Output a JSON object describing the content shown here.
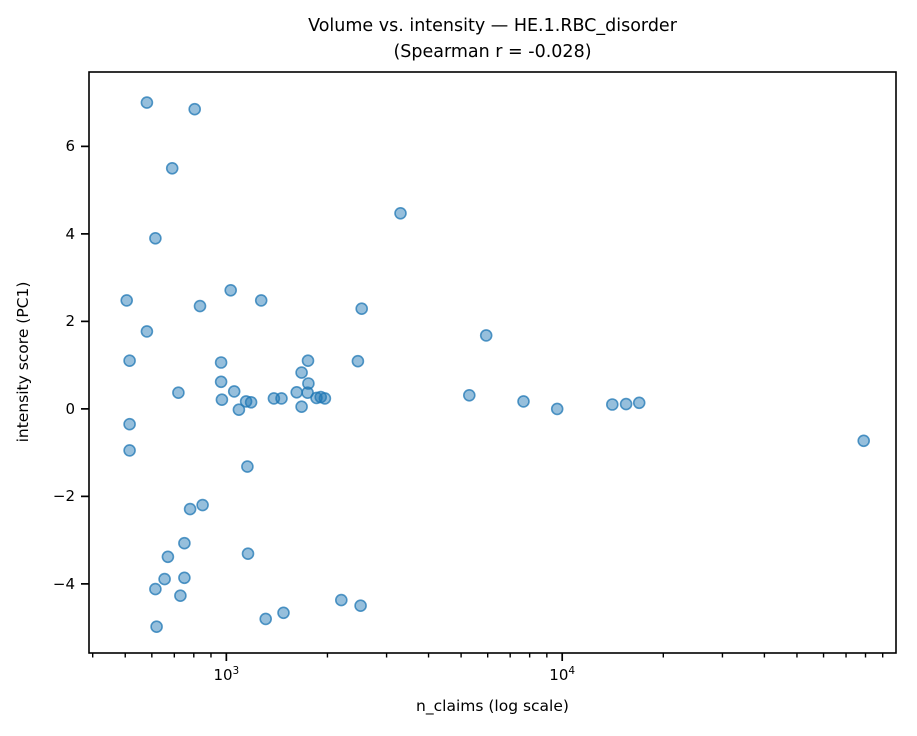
{
  "figure": {
    "title_line1": "Volume vs. intensity — HE.1.RBC_disorder",
    "title_line2": "(Spearman r = -0.028)"
  },
  "chart_data": {
    "type": "scatter",
    "title": "Volume vs. intensity — HE.1.RBC_disorder (Spearman r = -0.028)",
    "xlabel": "n_claims (log scale)",
    "ylabel": "intensity score (PC1)",
    "x_scale": "log",
    "y_scale": "linear",
    "xlim": [
      390,
      98600
    ],
    "ylim": [
      -5.58,
      7.7
    ],
    "grid": false,
    "legend": null,
    "marker": {
      "fill": "#1f77b4",
      "fill_opacity": 0.47,
      "stroke": "#1f77b4",
      "stroke_opacity": 0.75,
      "radius": 5.5,
      "stroke_width": 1.6
    },
    "axis_color": "#000000",
    "x_major_ticks": [
      {
        "value": 1000,
        "label_base": "10",
        "label_exp": "3"
      },
      {
        "value": 10000,
        "label_base": "10",
        "label_exp": "4"
      }
    ],
    "x_minor_ticks": [
      400,
      500,
      600,
      700,
      800,
      900,
      2000,
      3000,
      4000,
      5000,
      6000,
      7000,
      8000,
      9000,
      20000,
      30000,
      40000,
      50000,
      60000,
      70000,
      80000,
      90000
    ],
    "y_ticks": [
      {
        "value": 6,
        "label": "6"
      },
      {
        "value": 4,
        "label": "4"
      },
      {
        "value": 2,
        "label": "2"
      },
      {
        "value": 0,
        "label": "0"
      },
      {
        "value": -2,
        "label": "−2"
      },
      {
        "value": -4,
        "label": "−4"
      }
    ],
    "points": [
      [
        580,
        7.0
      ],
      [
        805,
        6.85
      ],
      [
        690,
        5.5
      ],
      [
        615,
        3.9
      ],
      [
        3300,
        4.47
      ],
      [
        505,
        2.48
      ],
      [
        1030,
        2.71
      ],
      [
        835,
        2.35
      ],
      [
        1270,
        2.48
      ],
      [
        2530,
        2.29
      ],
      [
        580,
        1.77
      ],
      [
        5940,
        1.68
      ],
      [
        515,
        1.1
      ],
      [
        965,
        1.06
      ],
      [
        1750,
        1.1
      ],
      [
        2465,
        1.09
      ],
      [
        1675,
        0.83
      ],
      [
        720,
        0.37
      ],
      [
        965,
        0.62
      ],
      [
        970,
        0.21
      ],
      [
        1055,
        0.4
      ],
      [
        1090,
        -0.02
      ],
      [
        1145,
        0.17
      ],
      [
        1185,
        0.15
      ],
      [
        1385,
        0.24
      ],
      [
        1460,
        0.24
      ],
      [
        1620,
        0.38
      ],
      [
        1745,
        0.37
      ],
      [
        1755,
        0.58
      ],
      [
        1675,
        0.05
      ],
      [
        1855,
        0.25
      ],
      [
        1910,
        0.27
      ],
      [
        1965,
        0.24
      ],
      [
        5290,
        0.31
      ],
      [
        7670,
        0.17
      ],
      [
        9660,
        0.0
      ],
      [
        14100,
        0.1
      ],
      [
        15500,
        0.11
      ],
      [
        16950,
        0.14
      ],
      [
        79000,
        -0.73
      ],
      [
        515,
        -0.35
      ],
      [
        515,
        -0.95
      ],
      [
        1155,
        -1.32
      ],
      [
        780,
        -2.29
      ],
      [
        850,
        -2.2
      ],
      [
        750,
        -3.07
      ],
      [
        670,
        -3.38
      ],
      [
        1160,
        -3.31
      ],
      [
        655,
        -3.89
      ],
      [
        750,
        -3.86
      ],
      [
        615,
        -4.12
      ],
      [
        730,
        -4.27
      ],
      [
        620,
        -4.98
      ],
      [
        1310,
        -4.8
      ],
      [
        1480,
        -4.66
      ],
      [
        2200,
        -4.37
      ],
      [
        2510,
        -4.5
      ]
    ]
  }
}
